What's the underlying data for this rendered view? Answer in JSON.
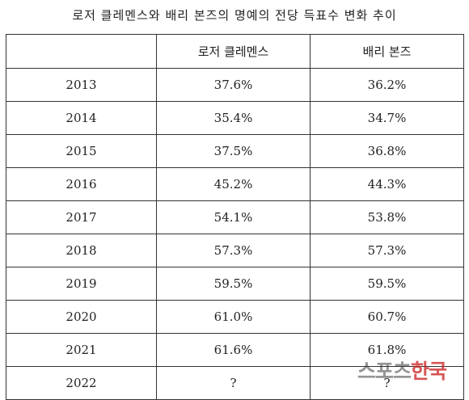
{
  "title": "로저 클레멘스와 배리 본즈의 명예의 전당 득표수 변화 추이",
  "table": {
    "headers": [
      "",
      "로저 클레멘스",
      "배리 본즈"
    ],
    "rows": [
      {
        "year": "2013",
        "clemens": "37.6%",
        "bonds": "36.2%"
      },
      {
        "year": "2014",
        "clemens": "35.4%",
        "bonds": "34.7%"
      },
      {
        "year": "2015",
        "clemens": "37.5%",
        "bonds": "36.8%"
      },
      {
        "year": "2016",
        "clemens": "45.2%",
        "bonds": "44.3%"
      },
      {
        "year": "2017",
        "clemens": "54.1%",
        "bonds": "53.8%"
      },
      {
        "year": "2018",
        "clemens": "57.3%",
        "bonds": "57.3%"
      },
      {
        "year": "2019",
        "clemens": "59.5%",
        "bonds": "59.5%"
      },
      {
        "year": "2020",
        "clemens": "61.0%",
        "bonds": "60.7%"
      },
      {
        "year": "2021",
        "clemens": "61.6%",
        "bonds": "61.8%"
      },
      {
        "year": "2022",
        "clemens": "?",
        "bonds": "?"
      }
    ]
  },
  "watermark": {
    "part1": "스포츠",
    "part2": "한국"
  }
}
